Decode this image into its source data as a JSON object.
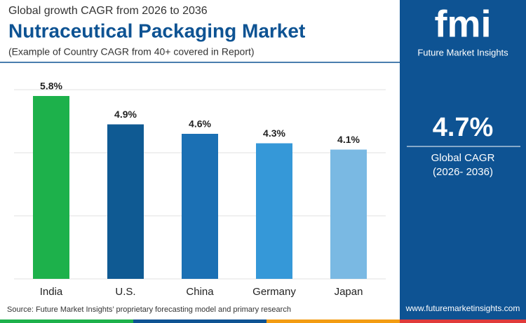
{
  "chart_data": {
    "type": "bar",
    "supertitle": "Global growth CAGR from 2026 to 2036",
    "title": "Nutraceutical Packaging Market",
    "subtitle": "(Example of Country CAGR from 40+ covered in Report)",
    "categories": [
      "India",
      "U.S.",
      "China",
      "Germany",
      "Japan"
    ],
    "values": [
      5.8,
      4.9,
      4.6,
      4.3,
      4.1
    ],
    "value_labels": [
      "5.8%",
      "4.9%",
      "4.6%",
      "4.3%",
      "4.1%"
    ],
    "colors": [
      "#1db14b",
      "#0f5a93",
      "#1b70b4",
      "#3598d8",
      "#7ab9e3"
    ],
    "ylim": [
      0,
      6
    ],
    "yticks": [
      0,
      2,
      4,
      6
    ],
    "grid": true,
    "source": "Source: Future Market Insights’ proprietary forecasting model and primary research"
  },
  "panel": {
    "logo": "fmi",
    "brand": "Future Market Insights",
    "headline": "4.7%",
    "caption": "Global CAGR",
    "period": "(2026- 2036)",
    "website": "www.futuremarketinsights.com"
  }
}
